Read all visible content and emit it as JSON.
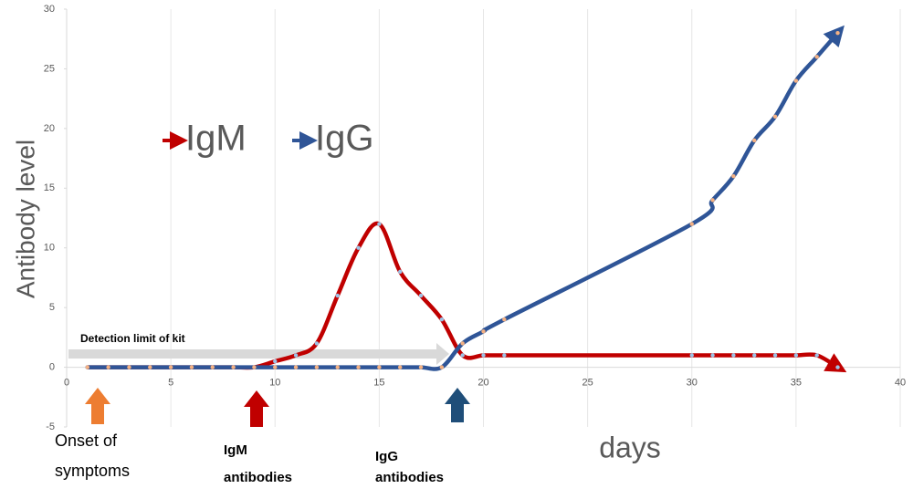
{
  "chart_data": {
    "type": "line",
    "y_label": "Antibody level",
    "x_label": "days",
    "x": [
      1,
      2,
      3,
      4,
      5,
      6,
      7,
      8,
      9,
      10,
      11,
      12,
      13,
      14,
      15,
      16,
      17,
      18,
      19,
      20,
      21,
      30,
      31,
      32,
      33,
      34,
      35,
      36,
      37
    ],
    "series": [
      {
        "name": "IgM",
        "color": "#c00000",
        "values": [
          0,
          0,
          0,
          0,
          0,
          0,
          0,
          0,
          0,
          0.5,
          1,
          2,
          6,
          10,
          12,
          8,
          6,
          4,
          1,
          1,
          1,
          1,
          1,
          1,
          1,
          1,
          1,
          1,
          0
        ]
      },
      {
        "name": "IgG",
        "color": "#2f5597",
        "values": [
          0,
          0,
          0,
          0,
          0,
          0,
          0,
          0,
          0,
          0,
          0,
          0,
          0,
          0,
          0,
          0,
          0,
          0,
          2,
          3,
          4,
          12,
          14,
          16,
          19,
          21,
          24,
          26,
          28
        ]
      }
    ],
    "xlim": [
      0,
      40
    ],
    "xticks": [
      0,
      5,
      10,
      15,
      20,
      25,
      30,
      35,
      40
    ],
    "ylim": [
      -5,
      30
    ],
    "yticks": [
      -5,
      0,
      5,
      10,
      15,
      20,
      25,
      30
    ],
    "grid": true,
    "annotations": {
      "detection": "Detection limit of kit",
      "onset": [
        "Onset of",
        "symptoms"
      ],
      "igm": [
        "IgM",
        "antibodies"
      ],
      "igg": [
        "IgG",
        "antibodies"
      ]
    }
  }
}
